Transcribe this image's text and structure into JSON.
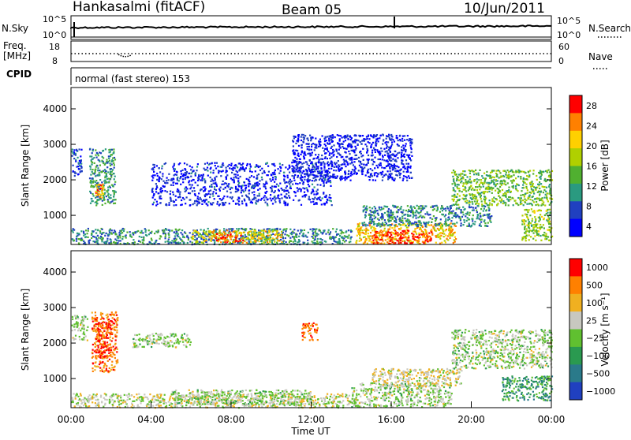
{
  "header": {
    "station": "Hankasalmi (fitACF)",
    "beam": "Beam 05",
    "date": "10/Jun/2011"
  },
  "top_panels": {
    "nsky_label": "N.Sky",
    "nsearch_label": "N.Search",
    "noise_ticks_left": [
      "10^5",
      "10^0"
    ],
    "noise_ticks_right": [
      "10^5",
      "10^0"
    ],
    "freq_label_1": "Freq.",
    "freq_label_2": "[MHz]",
    "freq_ticks": [
      "18",
      "8"
    ],
    "nave_label": "Nave",
    "nave_ticks": [
      "60",
      "0"
    ],
    "cpid_label": "CPID",
    "cpid_text": "normal (fast stereo) 153"
  },
  "chart_data": [
    {
      "type": "heatmap",
      "name": "power",
      "ylabel": "Slant Range [km]",
      "yticks": [
        "4000",
        "3000",
        "2000",
        "1000"
      ],
      "ylim": [
        180,
        4600
      ],
      "xlim": [
        0,
        24
      ],
      "xlabel": "",
      "colorbar_label": "Power [dB]",
      "colorbar_ticks": [
        "28",
        "24",
        "20",
        "16",
        "12",
        "8",
        "4"
      ],
      "colorbar_range": [
        0,
        30
      ],
      "colorscale": [
        "#0000ff",
        "#2040c0",
        "#2a9a80",
        "#50b030",
        "#b0d000",
        "#ffd000",
        "#ff8000",
        "#ff0000"
      ],
      "features": [
        {
          "t0": 0.0,
          "t1": 0.5,
          "r0": 2100,
          "r1": 2900,
          "level": 0.15
        },
        {
          "t0": 0.9,
          "t1": 2.2,
          "r0": 1300,
          "r1": 2900,
          "level": 0.35
        },
        {
          "t0": 1.2,
          "t1": 1.6,
          "r0": 1500,
          "r1": 1900,
          "level": 0.75
        },
        {
          "t0": 0.0,
          "t1": 14.0,
          "r0": 200,
          "r1": 650,
          "level": 0.3
        },
        {
          "t0": 6.0,
          "t1": 10.5,
          "r0": 250,
          "r1": 600,
          "level": 0.65
        },
        {
          "t0": 7.2,
          "t1": 8.6,
          "r0": 250,
          "r1": 500,
          "level": 0.9
        },
        {
          "t0": 14.2,
          "t1": 19.2,
          "r0": 220,
          "r1": 800,
          "level": 0.7
        },
        {
          "t0": 15.0,
          "t1": 18.0,
          "r0": 220,
          "r1": 600,
          "level": 0.92
        },
        {
          "t0": 14.5,
          "t1": 21.0,
          "r0": 700,
          "r1": 1300,
          "level": 0.3
        },
        {
          "t0": 19.0,
          "t1": 24.0,
          "r0": 1300,
          "r1": 2300,
          "level": 0.45
        },
        {
          "t0": 22.5,
          "t1": 24.0,
          "r0": 300,
          "r1": 1200,
          "level": 0.5
        },
        {
          "t0": 4.0,
          "t1": 13.0,
          "r0": 1300,
          "r1": 2500,
          "level": 0.12
        },
        {
          "t0": 11.0,
          "t1": 17.0,
          "r0": 2000,
          "r1": 3300,
          "level": 0.1
        }
      ]
    },
    {
      "type": "heatmap",
      "name": "velocity",
      "ylabel": "Slant Range [km]",
      "yticks": [
        "4000",
        "3000",
        "2000",
        "1000"
      ],
      "ylim": [
        180,
        4600
      ],
      "xlim": [
        0,
        24
      ],
      "xlabel": "Time UT",
      "xticks": [
        "00:00",
        "04:00",
        "08:00",
        "12:00",
        "16:00",
        "20:00",
        "00:00"
      ],
      "colorbar_label": "Velocity [m s⁻¹]",
      "colorbar_ticks": [
        "1000",
        "500",
        "100",
        "25",
        "−25",
        "−100",
        "−500",
        "−1000"
      ],
      "colorscale": [
        "#2040c0",
        "#2a7a8a",
        "#2a9a50",
        "#60c030",
        "#c8c8c0",
        "#f0b020",
        "#ff8000",
        "#ff0000"
      ],
      "features": [
        {
          "t0": 0.0,
          "t1": 0.8,
          "r0": 2100,
          "r1": 2800,
          "level": 0.5
        },
        {
          "t0": 1.0,
          "t1": 2.3,
          "r0": 1200,
          "r1": 2900,
          "level": 0.8
        },
        {
          "t0": 1.3,
          "t1": 2.0,
          "r0": 1600,
          "r1": 2600,
          "level": 0.95
        },
        {
          "t0": 0.0,
          "t1": 14.0,
          "r0": 200,
          "r1": 600,
          "level": 0.55
        },
        {
          "t0": 5.0,
          "t1": 12.0,
          "r0": 300,
          "r1": 700,
          "level": 0.5
        },
        {
          "t0": 14.0,
          "t1": 19.0,
          "r0": 220,
          "r1": 900,
          "level": 0.5
        },
        {
          "t0": 15.0,
          "t1": 19.5,
          "r0": 800,
          "r1": 1300,
          "level": 0.6
        },
        {
          "t0": 19.0,
          "t1": 24.0,
          "r0": 1300,
          "r1": 2400,
          "level": 0.5
        },
        {
          "t0": 21.5,
          "t1": 24.0,
          "r0": 400,
          "r1": 1100,
          "level": 0.3
        },
        {
          "t0": 11.5,
          "t1": 12.3,
          "r0": 2100,
          "r1": 2600,
          "level": 0.85
        },
        {
          "t0": 3.0,
          "t1": 6.0,
          "r0": 1900,
          "r1": 2300,
          "level": 0.5
        }
      ]
    }
  ]
}
